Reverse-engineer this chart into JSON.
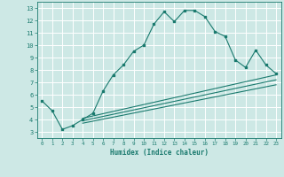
{
  "xlabel": "Humidex (Indice chaleur)",
  "ylabel": "",
  "bg_color": "#cde8e5",
  "grid_color": "#b0d8d4",
  "line_color": "#1a7a6e",
  "xlim": [
    -0.5,
    23.5
  ],
  "ylim": [
    2.5,
    13.5
  ],
  "xticks": [
    0,
    1,
    2,
    3,
    4,
    5,
    6,
    7,
    8,
    9,
    10,
    11,
    12,
    13,
    14,
    15,
    16,
    17,
    18,
    19,
    20,
    21,
    22,
    23
  ],
  "yticks": [
    3,
    4,
    5,
    6,
    7,
    8,
    9,
    10,
    11,
    12,
    13
  ],
  "main_x": [
    0,
    1,
    2,
    3,
    4,
    5,
    6,
    7,
    8,
    9,
    10,
    11,
    12,
    13,
    14,
    15,
    16,
    17,
    18,
    19,
    20,
    21,
    22,
    23
  ],
  "main_y": [
    5.5,
    4.7,
    3.2,
    3.5,
    4.0,
    4.5,
    6.3,
    7.6,
    8.4,
    9.5,
    10.0,
    11.7,
    12.7,
    11.9,
    12.8,
    12.8,
    12.3,
    11.1,
    10.7,
    8.8,
    8.2,
    9.6,
    8.4,
    7.7
  ],
  "line1_x": [
    4,
    23
  ],
  "line1_y": [
    4.1,
    7.6
  ],
  "line2_x": [
    4,
    23
  ],
  "line2_y": [
    3.9,
    7.2
  ],
  "line3_x": [
    4,
    23
  ],
  "line3_y": [
    3.7,
    6.8
  ]
}
